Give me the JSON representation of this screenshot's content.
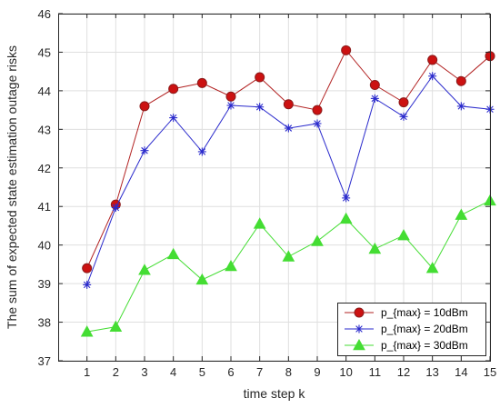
{
  "chart_data": {
    "type": "line",
    "title": "",
    "xlabel": "time step k",
    "ylabel": "The sum of expected state estimation outage risks",
    "x": [
      1,
      2,
      3,
      4,
      5,
      6,
      7,
      8,
      9,
      10,
      11,
      12,
      13,
      14,
      15
    ],
    "xlim": [
      0,
      15
    ],
    "ylim": [
      37,
      46
    ],
    "xticks": [
      1,
      2,
      3,
      4,
      5,
      6,
      7,
      8,
      9,
      10,
      11,
      12,
      13,
      14,
      15
    ],
    "yticks": [
      37,
      38,
      39,
      40,
      41,
      42,
      43,
      44,
      45,
      46
    ],
    "grid": true,
    "legend_position": "bottom-right",
    "series": [
      {
        "name": "p_{max} = 10dBm",
        "color": "#b22222",
        "marker": "circle",
        "marker_fill": "#cc1111",
        "values": [
          39.4,
          41.05,
          43.6,
          44.05,
          44.2,
          43.85,
          44.35,
          43.65,
          43.5,
          45.05,
          44.15,
          43.7,
          44.8,
          44.25,
          44.9
        ]
      },
      {
        "name": "p_{max} = 20dBm",
        "color": "#2a2acc",
        "marker": "asterisk",
        "marker_fill": "#2a2acc",
        "values": [
          38.97,
          40.97,
          42.45,
          43.3,
          42.42,
          43.62,
          43.58,
          43.03,
          43.15,
          41.22,
          43.8,
          43.33,
          44.38,
          43.6,
          43.52
        ]
      },
      {
        "name": "p_{max} = 30dBm",
        "color": "#44dd33",
        "marker": "triangle",
        "marker_fill": "#44dd33",
        "values": [
          37.75,
          37.88,
          39.35,
          39.76,
          39.1,
          39.45,
          40.55,
          39.7,
          40.1,
          40.68,
          39.9,
          40.25,
          39.4,
          40.78,
          41.15
        ]
      }
    ]
  }
}
